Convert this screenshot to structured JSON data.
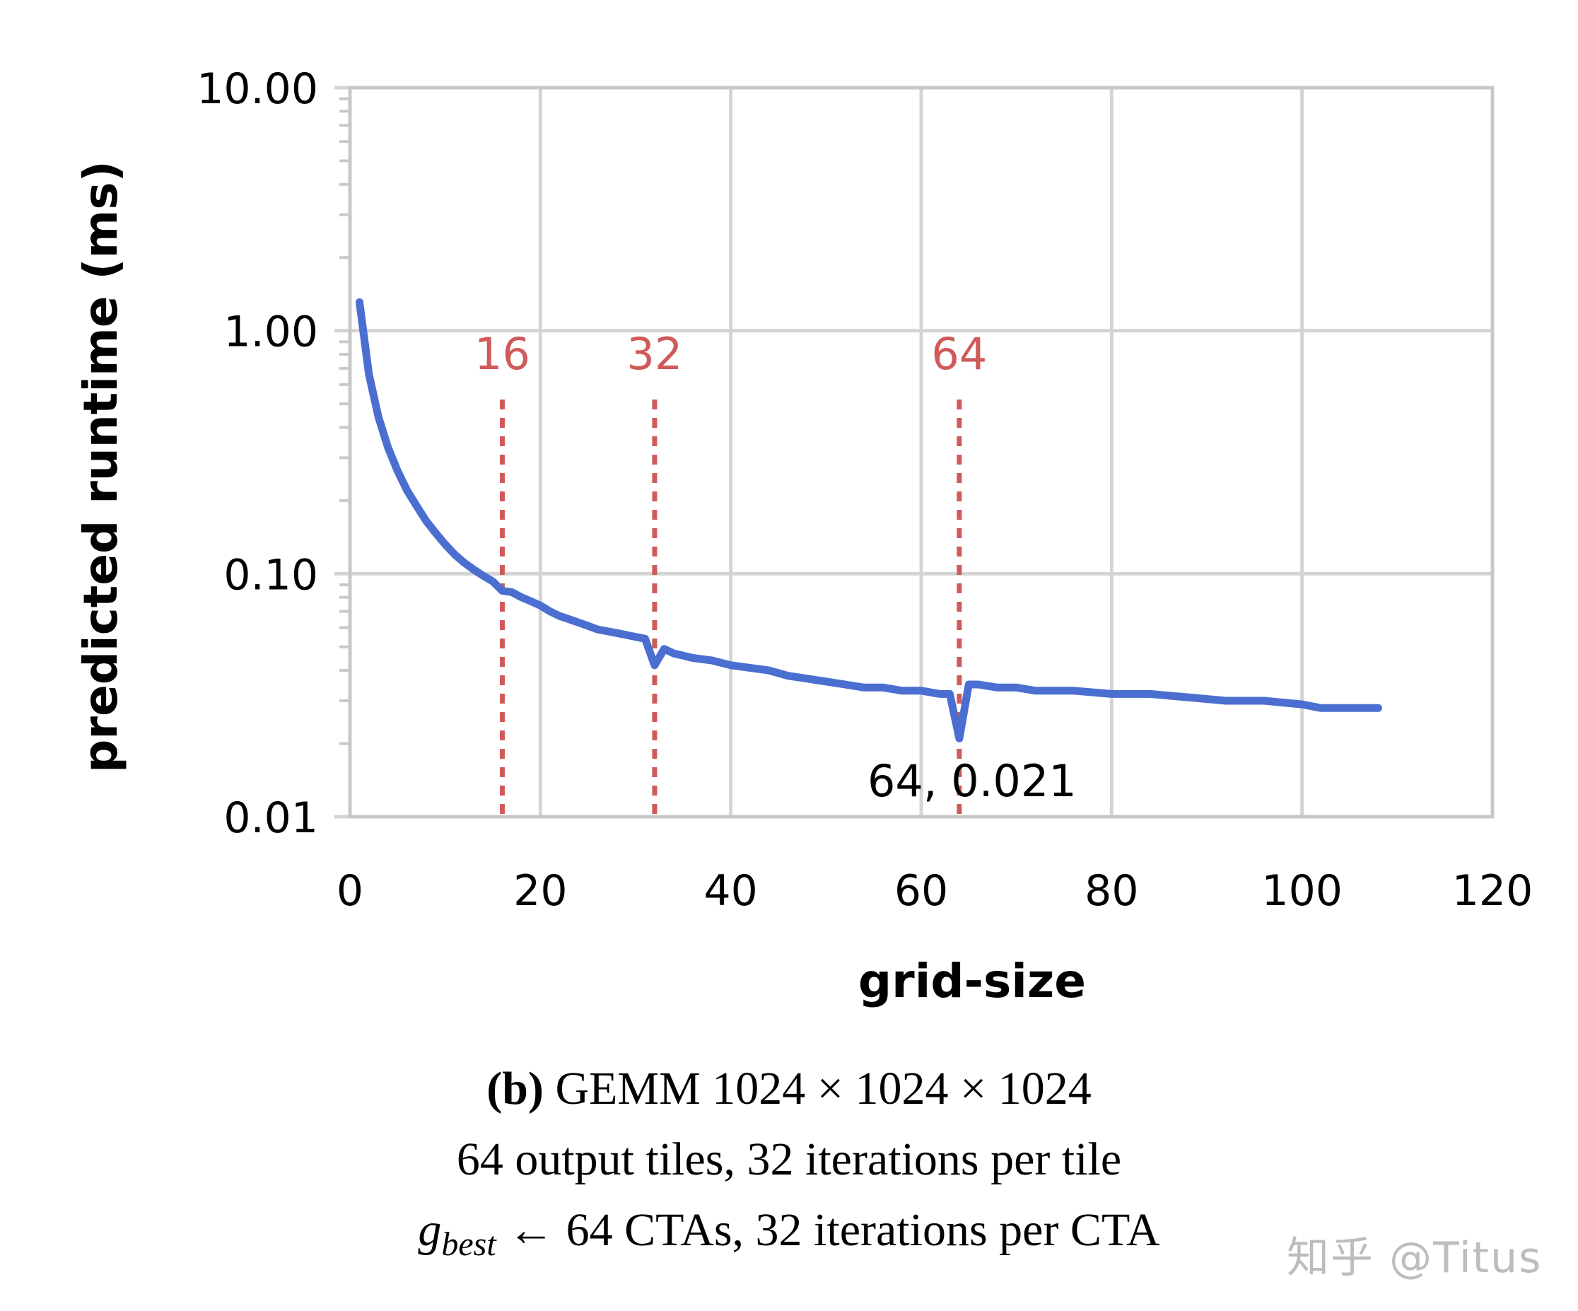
{
  "chart_data": {
    "type": "line",
    "title": "",
    "xlabel": "grid-size",
    "ylabel": "predicted runtime (ms)",
    "xlim": [
      0,
      120
    ],
    "ylim": [
      0.01,
      10
    ],
    "yscale": "log",
    "grid": true,
    "legend": null,
    "x_ticks": [
      0,
      20,
      40,
      60,
      80,
      100,
      120
    ],
    "x_tick_labels": [
      "0",
      "20",
      "40",
      "60",
      "80",
      "100",
      "120"
    ],
    "y_ticks": [
      0.01,
      0.1,
      1,
      10
    ],
    "y_tick_labels": [
      "0.01",
      "0.10",
      "1.00",
      "10.00"
    ],
    "series": [
      {
        "name": "predicted runtime",
        "color": "#4a6fd0",
        "x": [
          1,
          2,
          3,
          4,
          5,
          6,
          7,
          8,
          9,
          10,
          11,
          12,
          13,
          14,
          15,
          16,
          17,
          18,
          19,
          20,
          21,
          22,
          23,
          24,
          25,
          26,
          27,
          28,
          29,
          30,
          31,
          32,
          33,
          34,
          35,
          36,
          38,
          40,
          42,
          44,
          46,
          48,
          50,
          52,
          54,
          56,
          58,
          60,
          62,
          63,
          64,
          65,
          66,
          68,
          70,
          72,
          76,
          80,
          84,
          88,
          92,
          96,
          100,
          102,
          104,
          108
        ],
        "values": [
          1.31,
          0.66,
          0.44,
          0.33,
          0.265,
          0.22,
          0.19,
          0.165,
          0.147,
          0.132,
          0.12,
          0.111,
          0.104,
          0.098,
          0.093,
          0.085,
          0.084,
          0.08,
          0.077,
          0.074,
          0.07,
          0.067,
          0.065,
          0.063,
          0.061,
          0.059,
          0.058,
          0.057,
          0.056,
          0.055,
          0.054,
          0.042,
          0.049,
          0.047,
          0.046,
          0.045,
          0.044,
          0.042,
          0.041,
          0.04,
          0.038,
          0.037,
          0.036,
          0.035,
          0.034,
          0.034,
          0.033,
          0.033,
          0.032,
          0.032,
          0.021,
          0.035,
          0.035,
          0.034,
          0.034,
          0.033,
          0.033,
          0.032,
          0.032,
          0.031,
          0.03,
          0.03,
          0.029,
          0.028,
          0.028,
          0.028
        ]
      }
    ],
    "vlines": [
      {
        "x": 16,
        "label": "16",
        "color": "#d05a5a",
        "style": "dotted"
      },
      {
        "x": 32,
        "label": "32",
        "color": "#d05a5a",
        "style": "dotted"
      },
      {
        "x": 64,
        "label": "64",
        "color": "#d05a5a",
        "style": "dotted"
      }
    ],
    "annotations": [
      {
        "x": 64,
        "y": 0.021,
        "text": "64, 0.021"
      }
    ]
  },
  "caption": {
    "label": "(b)",
    "line1": "GEMM 1024 × 1024 × 1024",
    "line2": "64 output tiles, 32 iterations per tile",
    "line3_symbol": "g",
    "line3_subscript": "best",
    "line3_text": " ← 64 CTAs, 32 iterations per CTA"
  },
  "watermark": "知乎 @Titus"
}
